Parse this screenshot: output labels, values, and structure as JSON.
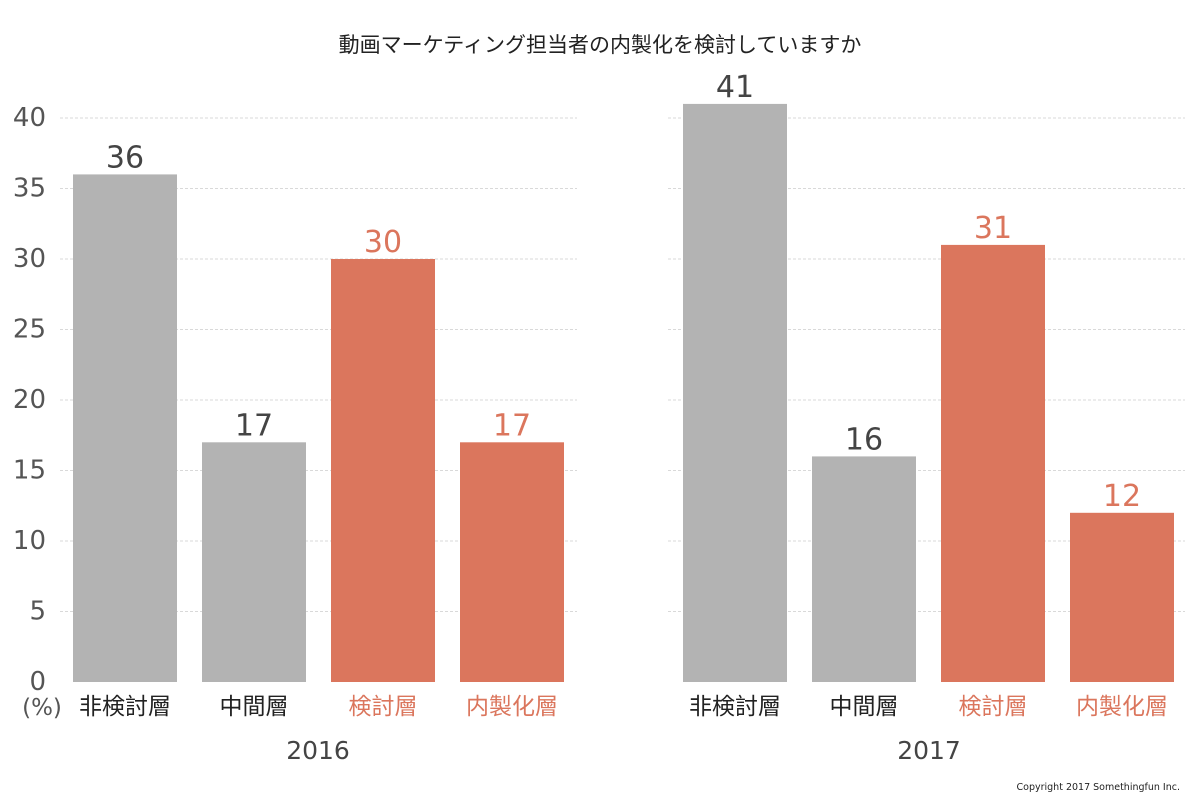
{
  "colors": {
    "gray": "#b3b3b3",
    "orange": "#db765d",
    "text_gray": "#444444"
  },
  "copyright": "Copyright 2017 Somethingfun Inc.",
  "chart_data": {
    "type": "bar",
    "title": "動画マーケティング担当者の内製化を検討していますか",
    "ylabel": "(%)",
    "ylim": [
      0,
      40
    ],
    "yticks": [
      0,
      5,
      10,
      15,
      20,
      25,
      30,
      35,
      40
    ],
    "grid": true,
    "categories": [
      "非検討層",
      "中間層",
      "検討層",
      "内製化層"
    ],
    "highlight": [
      false,
      false,
      true,
      true
    ],
    "panels": [
      {
        "name": "2016",
        "values": [
          36,
          17,
          30,
          17
        ]
      },
      {
        "name": "2017",
        "values": [
          41,
          16,
          31,
          12
        ]
      }
    ]
  }
}
